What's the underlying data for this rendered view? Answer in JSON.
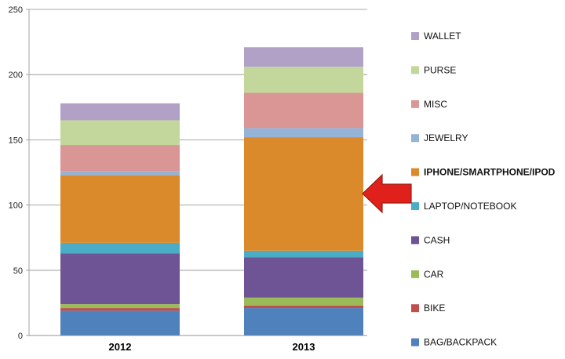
{
  "chart_data": {
    "type": "bar",
    "stacked": true,
    "categories": [
      "2012",
      "2013"
    ],
    "ylim": [
      0,
      250
    ],
    "yticks": [
      0,
      50,
      100,
      150,
      200,
      250
    ],
    "grid": true,
    "legend_position": "right",
    "series": [
      {
        "name": "BAG/BACKPACK",
        "values": [
          19,
          21
        ],
        "color": "#4F81BD"
      },
      {
        "name": "BIKE",
        "values": [
          2,
          2
        ],
        "color": "#C0504D"
      },
      {
        "name": "CAR",
        "values": [
          3,
          6
        ],
        "color": "#9BBB59"
      },
      {
        "name": "CASH",
        "values": [
          39,
          31
        ],
        "color": "#6E5494"
      },
      {
        "name": "LAPTOP/NOTEBOOK",
        "values": [
          8,
          5
        ],
        "color": "#4BACC6"
      },
      {
        "name": "IPHONE/SMARTPHONE/IPOD",
        "values": [
          52,
          87
        ],
        "color": "#DA8A2A",
        "highlight": true
      },
      {
        "name": "JEWELRY",
        "values": [
          3,
          7
        ],
        "color": "#95B3D7"
      },
      {
        "name": "MISC",
        "values": [
          20,
          27
        ],
        "color": "#D99694"
      },
      {
        "name": "PURSE",
        "values": [
          19,
          20
        ],
        "color": "#C3D69B"
      },
      {
        "name": "WALLET",
        "values": [
          13,
          15
        ],
        "color": "#B2A1C7"
      }
    ],
    "annotation": {
      "type": "arrow",
      "color": "#E0201B",
      "points_to": "IPHONE/SMARTPHONE/IPOD",
      "category": "2013"
    }
  }
}
